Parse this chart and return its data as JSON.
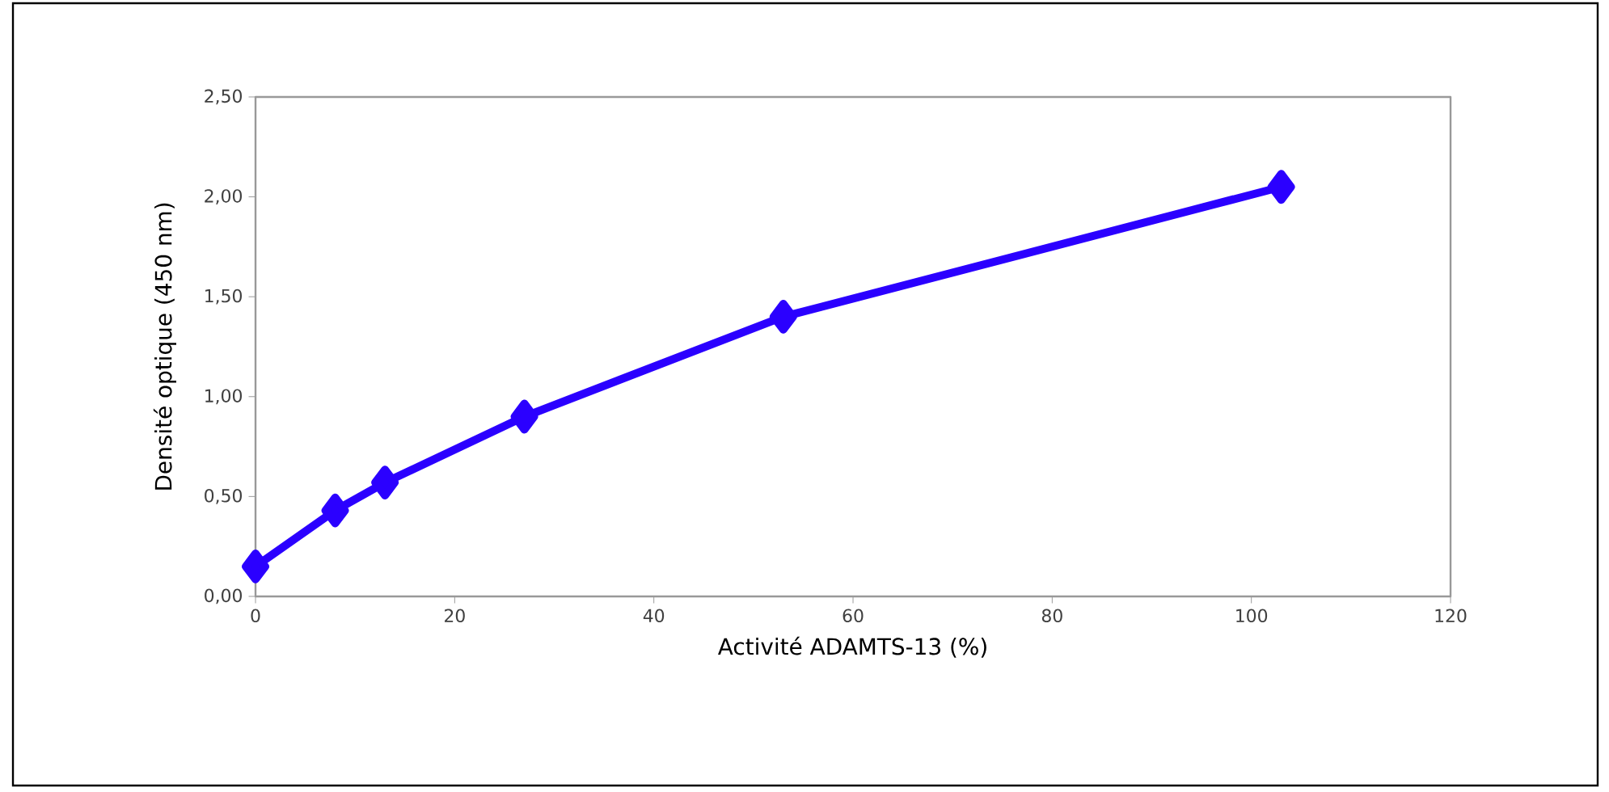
{
  "chart_data": {
    "type": "line",
    "xlabel": "Activité ADAMTS-13 (%)",
    "ylabel": "Densité optique (450 nm)",
    "x": [
      0,
      8,
      13,
      27,
      53,
      103
    ],
    "series": [
      {
        "color": "#2b00ff",
        "values": [
          0.15,
          0.43,
          0.57,
          0.9,
          1.4,
          2.05
        ]
      }
    ],
    "marker": "diamond",
    "line_style": "solid",
    "xlim": [
      0,
      120
    ],
    "xticks": [
      0,
      20,
      40,
      60,
      80,
      100,
      120
    ],
    "ylim": [
      0,
      2.5
    ],
    "yticks": [
      {
        "value": 0,
        "label": "0,00"
      },
      {
        "value": 0.5,
        "label": "0,50"
      },
      {
        "value": 1,
        "label": "1,00"
      },
      {
        "value": 1.5,
        "label": "1,50"
      },
      {
        "value": 2,
        "label": "2,00"
      },
      {
        "value": 2.5,
        "label": "2,50"
      }
    ]
  }
}
